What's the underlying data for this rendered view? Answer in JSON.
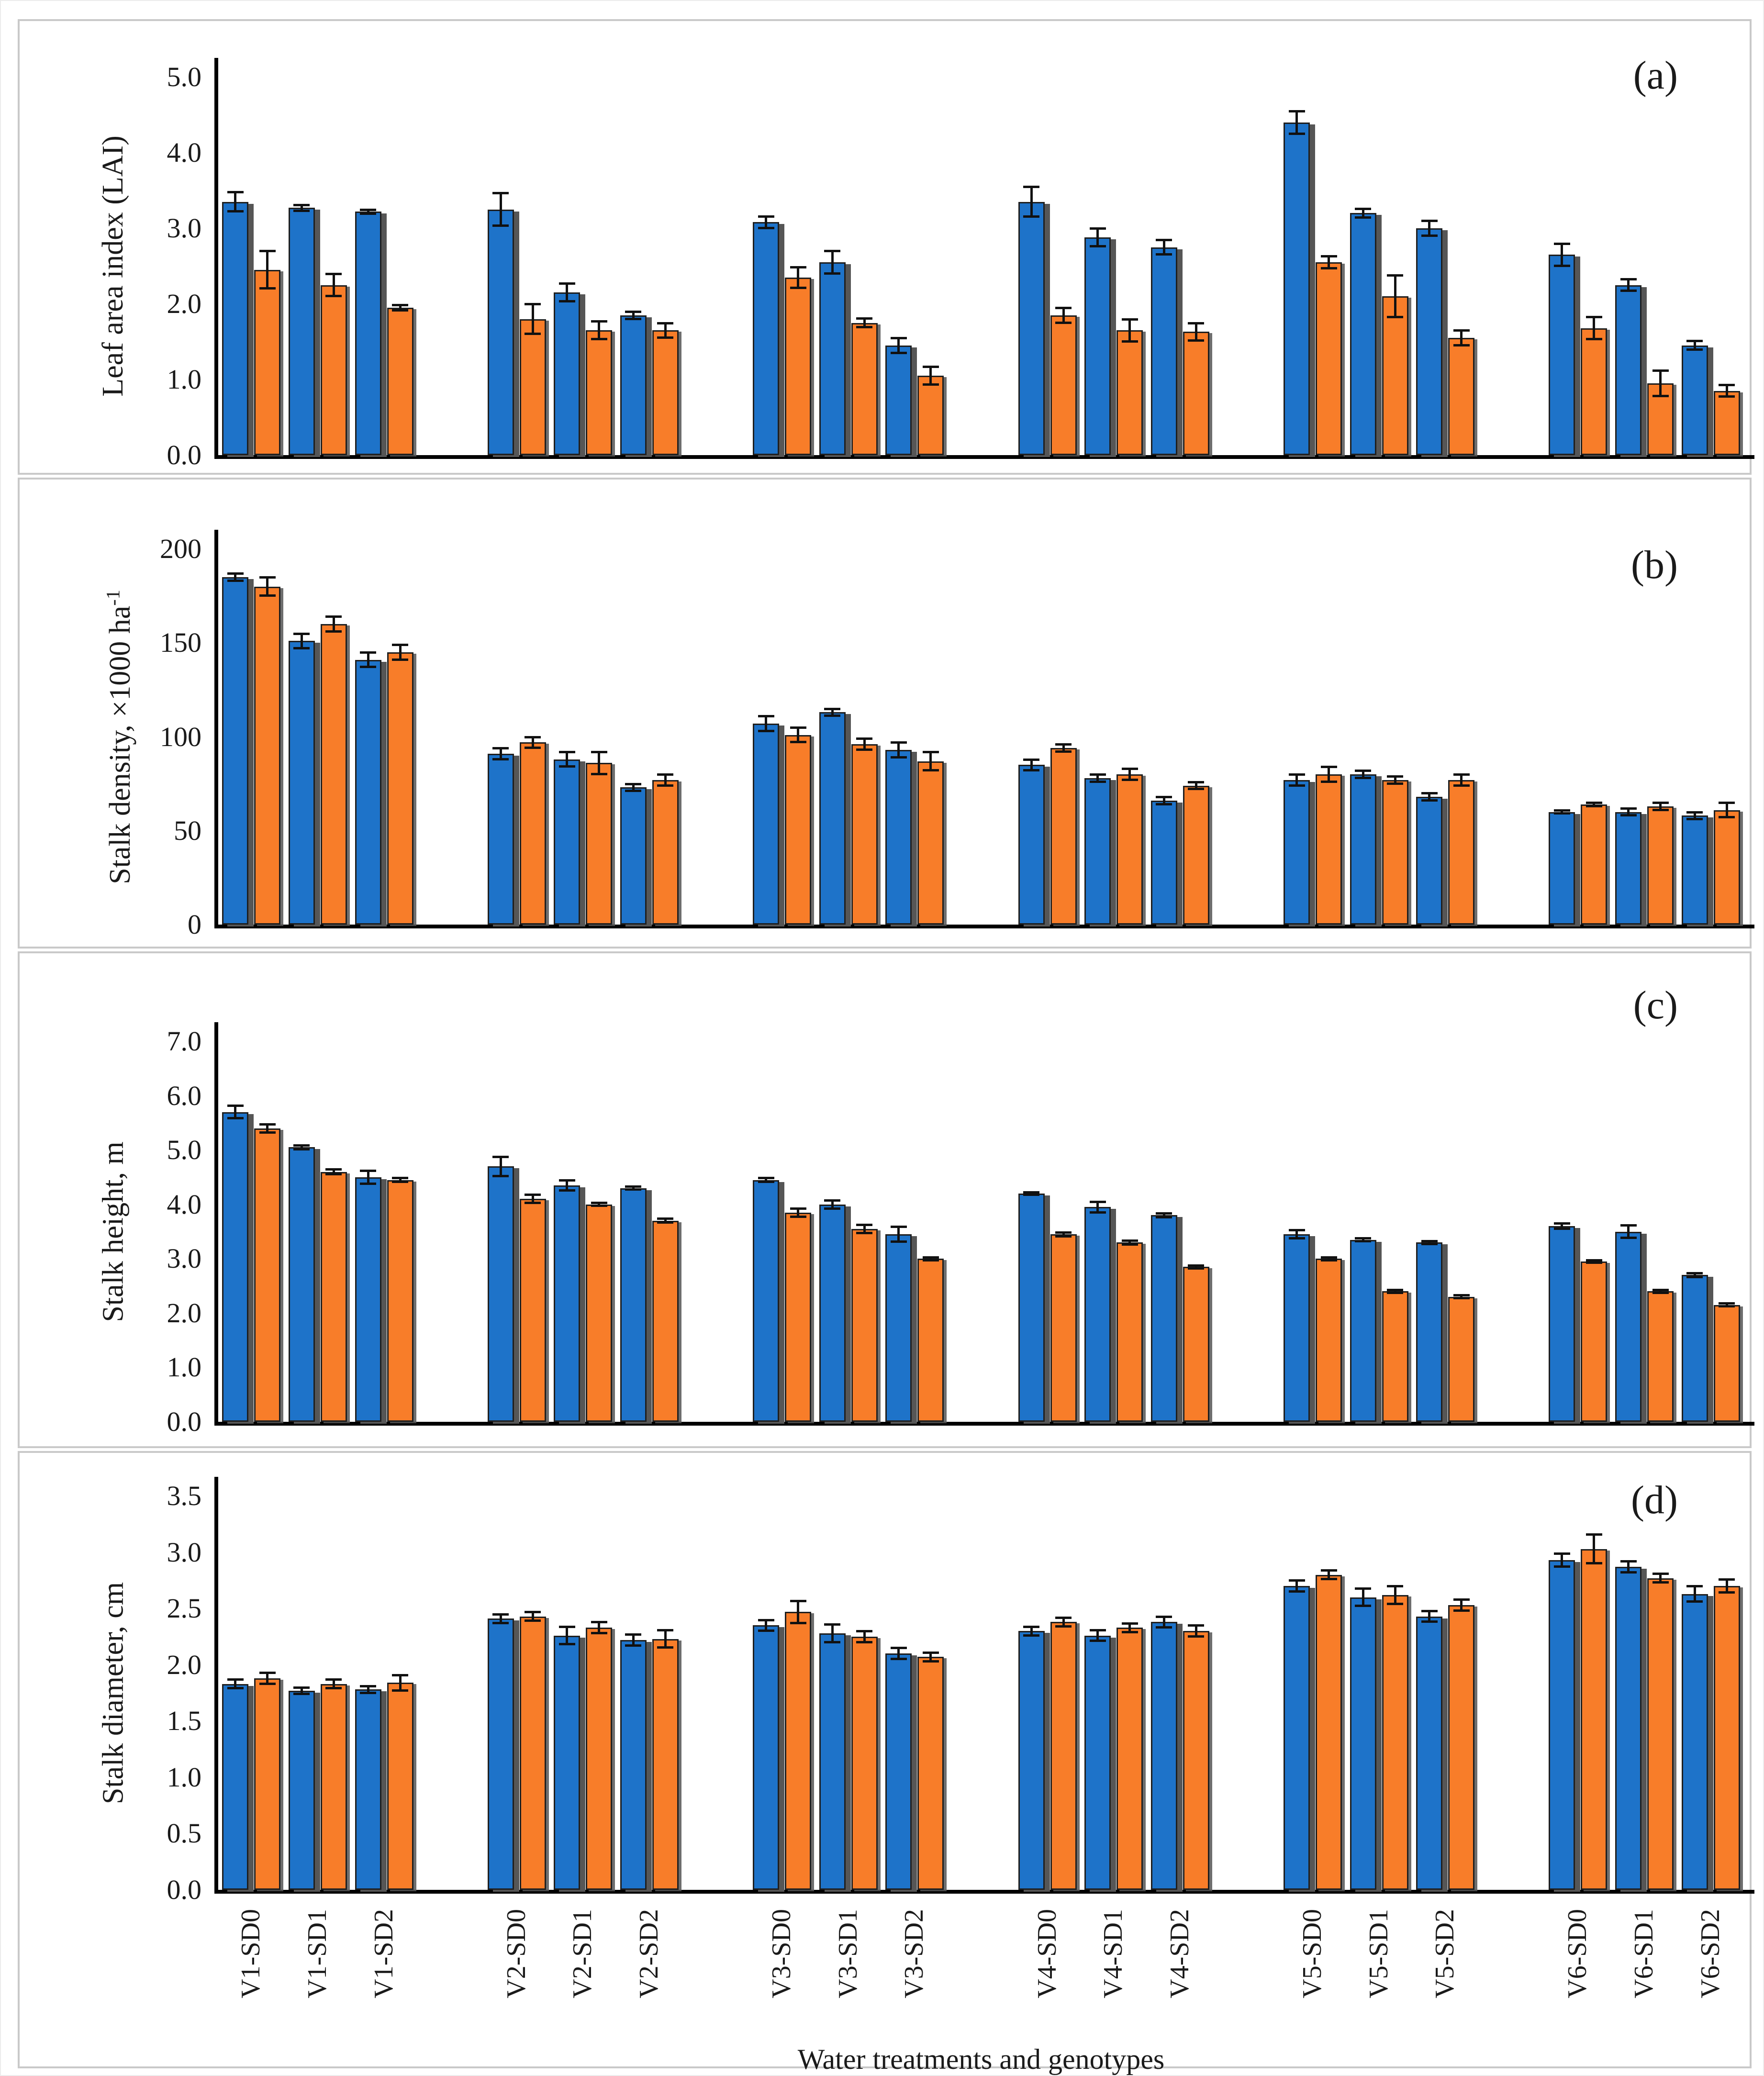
{
  "figure": {
    "xaxis_title": "Water treatments and genotypes",
    "colors": {
      "series_blue": "#1e73c9",
      "series_orange": "#f87d29",
      "bar_shadow": "#565656",
      "axis": "#000000",
      "panel_border": "#c9c9c9"
    }
  },
  "categories": [
    "V1-SD0",
    "V1-SD1",
    "V1-SD2",
    "V2-SD0",
    "V2-SD1",
    "V2-SD2",
    "V3-SD0",
    "V3-SD1",
    "V3-SD2",
    "V4-SD0",
    "V4-SD1",
    "V4-SD2",
    "V5-SD0",
    "V5-SD1",
    "V5-SD2",
    "V6-SD0",
    "V6-SD1",
    "V6-SD2"
  ],
  "chart_data": [
    {
      "type": "bar",
      "panel_label": "(a)",
      "ylabel": "Leaf area index  (LAI)",
      "ylabel_sup": "",
      "ylim": [
        0,
        5
      ],
      "yticks": [
        "5.0",
        "4.0",
        "3.0",
        "2.0",
        "1.0",
        "0.0"
      ],
      "grid": false,
      "legend": "none",
      "series": [
        {
          "name": "blue",
          "values": [
            3.35,
            3.27,
            3.22,
            3.25,
            2.15,
            1.85,
            3.08,
            2.55,
            1.45,
            3.35,
            2.88,
            2.75,
            4.4,
            3.2,
            3.0,
            2.65,
            2.25,
            1.45
          ],
          "errors": [
            0.13,
            0.04,
            0.03,
            0.22,
            0.12,
            0.05,
            0.08,
            0.15,
            0.1,
            0.2,
            0.12,
            0.1,
            0.15,
            0.06,
            0.1,
            0.15,
            0.08,
            0.06
          ]
        },
        {
          "name": "orange",
          "values": [
            2.45,
            2.25,
            1.95,
            1.8,
            1.65,
            1.65,
            2.35,
            1.75,
            1.05,
            1.85,
            1.65,
            1.63,
            2.55,
            2.1,
            1.55,
            1.68,
            0.95,
            0.85
          ],
          "errors": [
            0.25,
            0.15,
            0.04,
            0.2,
            0.12,
            0.1,
            0.14,
            0.06,
            0.12,
            0.1,
            0.15,
            0.12,
            0.08,
            0.28,
            0.1,
            0.15,
            0.17,
            0.08
          ]
        }
      ]
    },
    {
      "type": "bar",
      "panel_label": "(b)",
      "ylabel": "Stalk density, ×1000 ha",
      "ylabel_sup": "-1",
      "ylim": [
        0,
        200
      ],
      "yticks": [
        "200",
        "150",
        "100",
        "50",
        "0"
      ],
      "grid": false,
      "legend": "none",
      "series": [
        {
          "name": "blue",
          "values": [
            185,
            151,
            141,
            91,
            88,
            73,
            107,
            113,
            93,
            85,
            78,
            66,
            77,
            80,
            68,
            60,
            60,
            58
          ],
          "errors": [
            2,
            4,
            4,
            3,
            4,
            2,
            4,
            2,
            4,
            3,
            2,
            2,
            3,
            2,
            2,
            1,
            2,
            2
          ]
        },
        {
          "name": "orange",
          "values": [
            180,
            160,
            145,
            97,
            86,
            77,
            101,
            96,
            87,
            94,
            80,
            74,
            80,
            77,
            77,
            64,
            63,
            61
          ],
          "errors": [
            5,
            4,
            4,
            3,
            6,
            3,
            4,
            3,
            5,
            2,
            3,
            2,
            4,
            2,
            3,
            1,
            2,
            4
          ]
        }
      ]
    },
    {
      "type": "bar",
      "panel_label": "(c)",
      "ylabel": "Stalk height,  m",
      "ylabel_sup": "",
      "ylim": [
        0,
        7
      ],
      "yticks": [
        "7.0",
        "6.0",
        "5.0",
        "4.0",
        "3.0",
        "2.0",
        "1.0",
        "0.0"
      ],
      "grid": false,
      "legend": "none",
      "series": [
        {
          "name": "blue",
          "values": [
            5.7,
            5.05,
            4.5,
            4.7,
            4.35,
            4.3,
            4.45,
            4.0,
            3.45,
            4.2,
            3.95,
            3.8,
            3.45,
            3.35,
            3.3,
            3.6,
            3.5,
            2.7
          ],
          "errors": [
            0.12,
            0.04,
            0.12,
            0.18,
            0.1,
            0.03,
            0.04,
            0.08,
            0.14,
            0.03,
            0.1,
            0.04,
            0.08,
            0.03,
            0.03,
            0.05,
            0.12,
            0.04
          ]
        },
        {
          "name": "orange",
          "values": [
            5.4,
            4.6,
            4.45,
            4.1,
            4.0,
            3.7,
            3.85,
            3.55,
            3.0,
            3.45,
            3.3,
            2.85,
            3.0,
            2.4,
            2.3,
            2.95,
            2.4,
            2.15
          ],
          "errors": [
            0.08,
            0.05,
            0.04,
            0.08,
            0.03,
            0.04,
            0.08,
            0.08,
            0.03,
            0.04,
            0.04,
            0.03,
            0.03,
            0.03,
            0.03,
            0.03,
            0.03,
            0.03
          ]
        }
      ]
    },
    {
      "type": "bar",
      "panel_label": "(d)",
      "ylabel": "Stalk diameter,  cm",
      "ylabel_sup": "",
      "ylim": [
        0,
        3.5
      ],
      "yticks": [
        "3.5",
        "3.0",
        "2.5",
        "2.0",
        "1.5",
        "1.0",
        "0.5",
        "0.0"
      ],
      "grid": false,
      "legend": "none",
      "series": [
        {
          "name": "blue",
          "values": [
            1.83,
            1.77,
            1.78,
            2.41,
            2.26,
            2.22,
            2.35,
            2.28,
            2.1,
            2.3,
            2.26,
            2.38,
            2.7,
            2.6,
            2.43,
            2.93,
            2.87,
            2.63
          ],
          "errors": [
            0.04,
            0.03,
            0.03,
            0.04,
            0.08,
            0.05,
            0.05,
            0.08,
            0.05,
            0.04,
            0.05,
            0.05,
            0.05,
            0.08,
            0.05,
            0.06,
            0.05,
            0.07
          ]
        },
        {
          "name": "orange",
          "values": [
            1.88,
            1.83,
            1.84,
            2.43,
            2.33,
            2.23,
            2.47,
            2.25,
            2.07,
            2.38,
            2.33,
            2.3,
            2.8,
            2.62,
            2.53,
            3.03,
            2.77,
            2.7
          ],
          "errors": [
            0.05,
            0.04,
            0.07,
            0.04,
            0.05,
            0.08,
            0.1,
            0.05,
            0.04,
            0.04,
            0.04,
            0.05,
            0.04,
            0.08,
            0.05,
            0.13,
            0.04,
            0.06
          ]
        }
      ]
    }
  ]
}
